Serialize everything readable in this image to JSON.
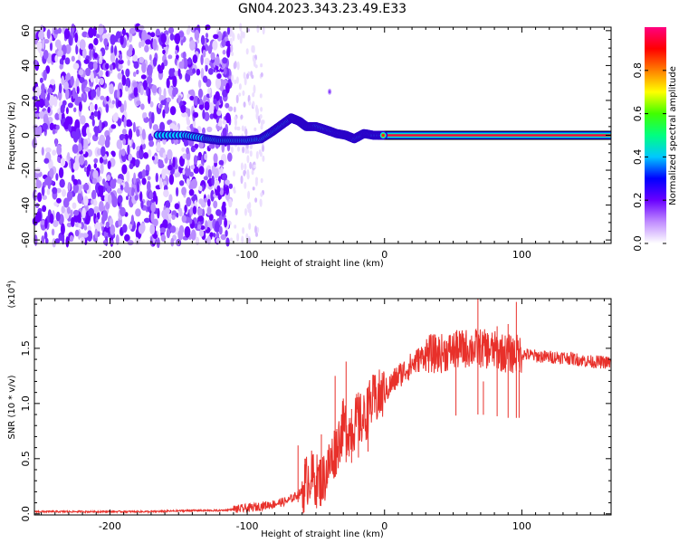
{
  "figure": {
    "title": "GN04.2023.343.23.49.E33"
  },
  "chart_data": [
    {
      "type": "heatmap",
      "title": "GN04.2023.343.23.49.E33",
      "xlabel": "Height of straight line (km)",
      "ylabel": "Frequency (Hz)",
      "xlim": [
        -255,
        165
      ],
      "ylim": [
        -62,
        62
      ],
      "x_ticks": [
        -200,
        -100,
        0,
        100
      ],
      "y_ticks": [
        -60,
        -40,
        -20,
        0,
        20,
        40,
        60
      ],
      "colorbar": {
        "label": "Normalized spectral amplitude",
        "range": [
          0.0,
          1.0
        ],
        "ticks": [
          0.0,
          0.2,
          0.4,
          0.6,
          0.8
        ],
        "colors": [
          "#ffffff",
          "#c08cff",
          "#6a00ff",
          "#0000ff",
          "#00c8ff",
          "#00ff80",
          "#40ff00",
          "#ffff00",
          "#ff8000",
          "#ff0000",
          "#ff0080"
        ]
      },
      "features": {
        "noise_region_x": [
          -255,
          -112
        ],
        "sparse_noise_x": [
          -112,
          -88
        ],
        "curve_points": [
          {
            "x": -165,
            "y": 0
          },
          {
            "x": -145,
            "y": 0
          },
          {
            "x": -130,
            "y": -2
          },
          {
            "x": -120,
            "y": -3
          },
          {
            "x": -110,
            "y": -3
          },
          {
            "x": -100,
            "y": -3
          },
          {
            "x": -90,
            "y": -2
          },
          {
            "x": -82,
            "y": 2
          },
          {
            "x": -75,
            "y": 6
          },
          {
            "x": -68,
            "y": 10
          },
          {
            "x": -62,
            "y": 8
          },
          {
            "x": -57,
            "y": 5
          },
          {
            "x": -50,
            "y": 5
          },
          {
            "x": -42,
            "y": 3
          },
          {
            "x": -35,
            "y": 1
          },
          {
            "x": -28,
            "y": 0
          },
          {
            "x": -22,
            "y": -2
          },
          {
            "x": -15,
            "y": 1
          },
          {
            "x": -8,
            "y": 0
          },
          {
            "x": 0,
            "y": 0
          },
          {
            "x": 165,
            "y": 0
          }
        ],
        "line_y": 0,
        "line_from_x": -5,
        "isolated_blob": {
          "x": -40,
          "y": 25
        }
      }
    },
    {
      "type": "line",
      "xlabel": "Height of straight line (km)",
      "ylabel": "SNR (10 * v/v)",
      "y_multiplier": "(x10",
      "y_multiplier_exp": "4",
      "y_multiplier_close": ")",
      "xlim": [
        -255,
        165
      ],
      "ylim": [
        -0.01,
        1.95
      ],
      "x_ticks": [
        -200,
        -100,
        0,
        100
      ],
      "y_ticks": [
        0.0,
        0.5,
        1.0,
        1.5
      ],
      "color": "#e8302a",
      "series": [
        {
          "points": [
            [
              -255,
              0.02
            ],
            [
              -230,
              0.02
            ],
            [
              -200,
              0.02
            ],
            [
              -170,
              0.02
            ],
            [
              -140,
              0.03
            ],
            [
              -120,
              0.03
            ],
            [
              -110,
              0.04
            ],
            [
              -100,
              0.05
            ],
            [
              -90,
              0.07
            ],
            [
              -80,
              0.09
            ],
            [
              -70,
              0.12
            ],
            [
              -60,
              0.2
            ],
            [
              -55,
              0.35
            ],
            [
              -50,
              0.3
            ],
            [
              -45,
              0.3
            ],
            [
              -40,
              0.45
            ],
            [
              -35,
              0.6
            ],
            [
              -30,
              0.8
            ],
            [
              -25,
              0.75
            ],
            [
              -20,
              0.85
            ],
            [
              -15,
              0.85
            ],
            [
              -10,
              1.0
            ],
            [
              -5,
              1.05
            ],
            [
              0,
              1.1
            ],
            [
              10,
              1.25
            ],
            [
              20,
              1.35
            ],
            [
              30,
              1.45
            ],
            [
              40,
              1.45
            ],
            [
              50,
              1.48
            ],
            [
              60,
              1.5
            ],
            [
              70,
              1.5
            ],
            [
              80,
              1.48
            ],
            [
              90,
              1.45
            ],
            [
              100,
              1.45
            ],
            [
              110,
              1.43
            ],
            [
              120,
              1.42
            ],
            [
              130,
              1.42
            ],
            [
              140,
              1.4
            ],
            [
              150,
              1.38
            ],
            [
              165,
              1.37
            ]
          ],
          "spikes": [
            [
              -63,
              0.62
            ],
            [
              -58,
              0.5
            ],
            [
              -46,
              0.72
            ],
            [
              -36,
              1.25
            ],
            [
              -28,
              1.38
            ],
            [
              -24,
              0.95
            ],
            [
              -19,
              1.1
            ],
            [
              -12,
              1.15
            ],
            [
              52,
              1.65
            ],
            [
              68,
              1.95
            ],
            [
              72,
              1.2
            ],
            [
              82,
              1.7
            ],
            [
              90,
              1.72
            ],
            [
              96,
              1.92
            ],
            [
              98,
              1.3
            ]
          ]
        }
      ]
    }
  ]
}
